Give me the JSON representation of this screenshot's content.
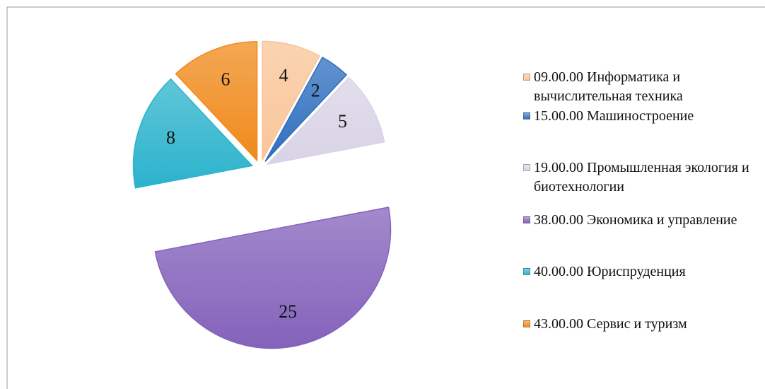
{
  "chart_data": {
    "type": "pie",
    "categories": [
      "09.00.00 Информатика и вычислительная техника",
      "15.00.00 Машиностроение",
      "19.00.00 Промышленная экология и  биотехнологии",
      "38.00.00 Экономика и управление",
      "40.00.00 Юриспруденция",
      "43.00.00 Сервис и туризм"
    ],
    "values": [
      4,
      2,
      5,
      25,
      8,
      6
    ],
    "colors": [
      "#f9c598",
      "#2f6fbf",
      "#d8d3e6",
      "#8462bb",
      "#2bb3cc",
      "#f08a1c"
    ],
    "legend": "right"
  }
}
